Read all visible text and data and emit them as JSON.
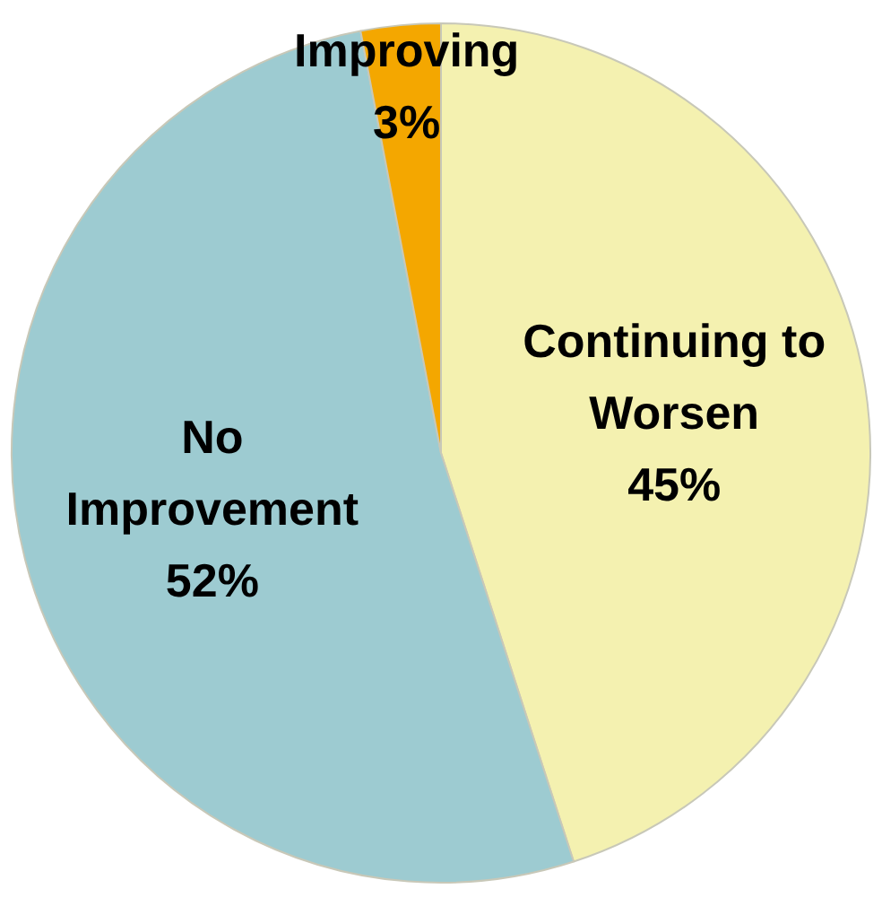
{
  "chart_data": {
    "type": "pie",
    "categories": [
      "Continuing to Worsen",
      "No Improvement",
      "Improving"
    ],
    "values": [
      45,
      52,
      3
    ],
    "value_labels": [
      "45%",
      "52%",
      "3%"
    ],
    "colors": [
      "#f4f1b0",
      "#9dcbd1",
      "#f4a700"
    ],
    "legend": false
  }
}
